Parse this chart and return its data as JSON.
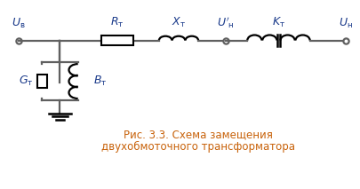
{
  "caption_line1": "Рис. 3.3. Схема замещения",
  "caption_line2": "двухобмоточного трансформатора",
  "caption_color": "#c8620a",
  "wire_color": "#606060",
  "element_color": "#000000",
  "label_color": "#1a3a8a",
  "bg_color": "#ffffff",
  "figsize": [
    4.06,
    2.13
  ],
  "dpi": 100
}
